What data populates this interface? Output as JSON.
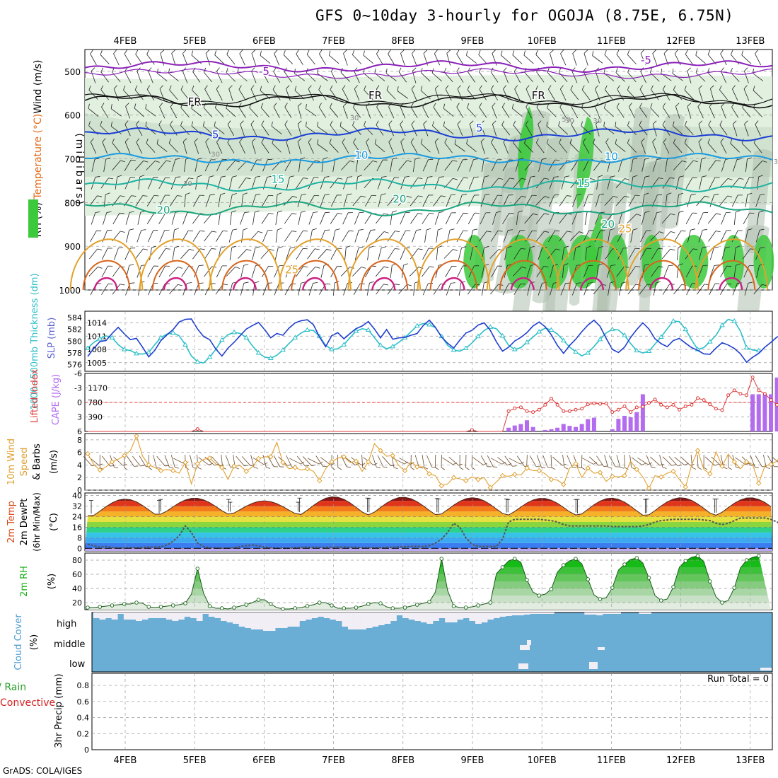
{
  "title": "GFS 0~10day 3-hourly for OGOJA (8.75E, 6.75N)",
  "credit": "GrADS: COLA/IGES",
  "colors": {
    "rh_green": "#3cc93c",
    "rh_light": "#dfeedd",
    "rh_mid": "#aebfae",
    "purple": "#8a20b8",
    "blue": "#1a3ed4",
    "cyan": "#1a9be0",
    "teal": "#1fb3a2",
    "green_iso": "#1ca680",
    "orange": "#e3a12a",
    "dk_orange": "#d9641a",
    "magenta": "#cc1f84",
    "slp": "#1f3fcf",
    "thick": "#2cbfc9",
    "cape": "#b36bf0",
    "li": "#dd3a3a",
    "wind": "#e0a030",
    "rh2m": "#19b019",
    "cloud": "#6aaed6",
    "cloud_clear": "#f2eef6"
  },
  "chart_data": [
    {
      "panel": "upper-air",
      "type": "contour",
      "labels": {
        "y_title": "(millibars)",
        "legend_wind": "Wind (m/s)",
        "legend_temp": "Temperature (°C)",
        "legend_rh": "RH (%)"
      },
      "x_dates": [
        "4FEB",
        "5FEB",
        "6FEB",
        "7FEB",
        "8FEB",
        "9FEB",
        "10FEB",
        "11FEB",
        "12FEB",
        "13FEB"
      ],
      "y_ticks": [
        500,
        600,
        700,
        800,
        900,
        1000
      ],
      "y_range": [
        450,
        1000
      ],
      "isotherm_labels": [
        {
          "text": "-5",
          "day": 2.0,
          "p": 508
        },
        {
          "text": "-5",
          "day": 7.5,
          "p": 482
        },
        {
          "text": "FR",
          "day": 1.0,
          "p": 578
        },
        {
          "text": "FR",
          "day": 3.6,
          "p": 563
        },
        {
          "text": "FR",
          "day": 5.95,
          "p": 563
        },
        {
          "text": "5",
          "day": 1.3,
          "p": 653
        },
        {
          "text": "5",
          "day": 5.1,
          "p": 638
        },
        {
          "text": "10",
          "day": 3.4,
          "p": 700
        },
        {
          "text": "10",
          "day": 7.0,
          "p": 703
        },
        {
          "text": "15",
          "day": 2.2,
          "p": 755
        },
        {
          "text": "15",
          "day": 6.6,
          "p": 765
        },
        {
          "text": "20",
          "day": 0.55,
          "p": 825
        },
        {
          "text": "20",
          "day": 3.95,
          "p": 800
        },
        {
          "text": "20",
          "day": 6.95,
          "p": 858
        },
        {
          "text": "25",
          "day": 7.2,
          "p": 868
        },
        {
          "text": "25",
          "day": 2.4,
          "p": 962
        }
      ],
      "rh_labels": [
        {
          "text": "30",
          "day": 3.3,
          "p": 612
        },
        {
          "text": "30",
          "day": 1.3,
          "p": 695
        },
        {
          "text": "30",
          "day": 0.9,
          "p": 762
        },
        {
          "text": "30",
          "day": 6.4,
          "p": 618
        },
        {
          "text": "30",
          "day": 6.8,
          "p": 618
        },
        {
          "text": "30",
          "day": 9.4,
          "p": 712
        },
        {
          "text": "50",
          "day": 6.35,
          "p": 615
        }
      ]
    },
    {
      "panel": "slp-thickness",
      "type": "line",
      "labels": {
        "left": "1000~500mb Thickness (dm)",
        "right": "SLP (mb)"
      },
      "thickness_ticks": [
        576,
        578,
        580,
        582,
        584
      ],
      "slp_ticks": [
        1005,
        1008,
        1011,
        1014
      ],
      "thickness": [
        578.8,
        579.8,
        580.4,
        580.9,
        580.6,
        579.4,
        578.6,
        578.4,
        577.9,
        577.8,
        578.1,
        579.4,
        580.6,
        581.2,
        581.4,
        580.9,
        579.4,
        577.5,
        576.5,
        576.3,
        577.3,
        578.6,
        580.2,
        581.1,
        581.5,
        581.3,
        580.6,
        579.2,
        578.0,
        577.3,
        577.1,
        577.6,
        578.5,
        579.6,
        580.6,
        581.4,
        581.9,
        581.8,
        580.8,
        579.3,
        578.6,
        578.7,
        579.4,
        580.6,
        581.7,
        582.1,
        581.9,
        580.6,
        579.3,
        578.7,
        579.1,
        579.8,
        580.6,
        581.6,
        582.6,
        583.0,
        582.8,
        582.3,
        580.8,
        579.3,
        578.5,
        578.3,
        578.8,
        579.7,
        580.8,
        581.8,
        582.4,
        582.1,
        580.9,
        579.3,
        578.6,
        578.9,
        579.8,
        580.7,
        581.6,
        582.2,
        581.9,
        581.2,
        580.1,
        579.0,
        578.2,
        577.5,
        578.0,
        579.1,
        580.3,
        581.4,
        582.0,
        581.9,
        581.0,
        579.6,
        578.4,
        578.0,
        578.3,
        579.5,
        580.7,
        582.1,
        583.4,
        583.3,
        582.0,
        580.2,
        578.6,
        578.9,
        579.9,
        581.0,
        582.7,
        583.7,
        583.4,
        581.7,
        578.9,
        578.5,
        578.4
      ],
      "slp": [
        1006.4,
        1008.2,
        1009.8,
        1010.0,
        1011.6,
        1013.0,
        1011.5,
        1010.2,
        1010.5,
        1008.5,
        1006.3,
        1007.8,
        1010.0,
        1011.3,
        1012.5,
        1014.2,
        1014.8,
        1014.9,
        1012.6,
        1010.9,
        1010.2,
        1008.1,
        1006.5,
        1008.3,
        1009.6,
        1011.1,
        1012.6,
        1013.4,
        1014.1,
        1012.5,
        1010.6,
        1011.6,
        1011.2,
        1012.8,
        1014.0,
        1014.5,
        1014.7,
        1013.6,
        1010.8,
        1008.6,
        1011.1,
        1011.8,
        1010.4,
        1011.6,
        1012.7,
        1013.3,
        1014.3,
        1012.6,
        1010.6,
        1012.5,
        1010.3,
        1010.6,
        1010.7,
        1011.2,
        1011.6,
        1013.4,
        1014.6,
        1013.0,
        1010.8,
        1009.4,
        1008.3,
        1010.1,
        1011.7,
        1012.3,
        1013.5,
        1014.0,
        1012.3,
        1009.7,
        1007.6,
        1008.5,
        1009.9,
        1010.7,
        1011.8,
        1013.3,
        1014.2,
        1013.1,
        1011.3,
        1008.9,
        1007.1,
        1008.9,
        1010.3,
        1012.0,
        1013.5,
        1014.6,
        1013.2,
        1010.5,
        1008.0,
        1007.3,
        1008.5,
        1010.7,
        1012.5,
        1014.0,
        1012.6,
        1010.4,
        1009.3,
        1008.6,
        1010.0,
        1010.5,
        1009.4,
        1008.4,
        1007.8,
        1007.0,
        1006.9,
        1008.3,
        1009.5,
        1009.0,
        1008.2,
        1007.0,
        1005.1,
        1006.2,
        1007.1,
        1008.5,
        1009.6,
        1010.8,
        1011.3,
        1010.6,
        1008.5,
        1006.1
      ]
    },
    {
      "panel": "cape-li",
      "type": "bar",
      "labels": {
        "left": "Lifted Index",
        "right": "CAPE (J/kg)"
      },
      "li_ticks": [
        -6,
        -3,
        0,
        3,
        6
      ],
      "cape_ticks": [
        390,
        780,
        1170
      ],
      "cape": [
        0,
        0,
        0,
        0,
        0,
        0,
        0,
        0,
        0,
        0,
        0,
        0,
        0,
        0,
        0,
        0,
        0,
        0,
        0,
        0,
        0,
        0,
        0,
        0,
        0,
        0,
        0,
        0,
        0,
        0,
        0,
        0,
        0,
        0,
        0,
        0,
        0,
        0,
        0,
        0,
        0,
        0,
        0,
        0,
        0,
        0,
        0,
        0,
        0,
        0,
        0,
        0,
        0,
        0,
        0,
        0,
        0,
        0,
        0,
        0,
        0,
        0,
        0,
        0,
        0,
        0,
        0,
        0,
        0,
        100,
        160,
        200,
        300,
        120,
        0,
        40,
        60,
        100,
        200,
        150,
        120,
        200,
        330,
        370,
        0,
        0,
        60,
        340,
        420,
        380,
        520,
        1000,
        0,
        0,
        0,
        0,
        0,
        0,
        0,
        0,
        0,
        0,
        0,
        0,
        0,
        0,
        0,
        0,
        0,
        1000,
        1000,
        1000,
        1000,
        1450,
        220,
        0,
        0,
        0,
        0,
        1000,
        850,
        850
      ],
      "li": [
        6,
        6,
        6,
        6,
        6,
        6,
        6,
        6,
        6,
        6,
        6,
        6,
        6,
        6,
        6,
        6,
        6,
        6,
        5.5,
        6,
        6,
        6,
        6,
        6,
        6,
        6,
        6,
        6,
        6,
        6,
        6,
        6,
        6,
        6,
        6,
        6,
        6,
        6,
        6,
        6,
        6,
        6,
        6,
        6,
        6,
        6,
        6,
        6,
        6,
        6,
        6,
        6,
        6,
        6,
        6,
        6,
        6,
        6,
        6,
        6,
        6,
        6,
        6,
        5.7,
        6,
        6,
        6,
        6,
        6,
        1.8,
        1.2,
        1.0,
        1.8,
        2.0,
        1.5,
        0.5,
        -0.8,
        0.5,
        1.8,
        1.8,
        1.5,
        1.3,
        0.4,
        0.2,
        0.3,
        0.2,
        2.0,
        1.5,
        0.8,
        2.0,
        1.0,
        0.9,
        0.1,
        -0.6,
        0.5,
        1.0,
        0.5,
        1.5,
        0.8,
        0.5,
        -0.9,
        -0.5,
        0.4,
        1.3,
        1.6,
        -1.5,
        -2.5,
        -1.8,
        -1.5,
        -5.2,
        -2.5,
        -1.8,
        -0.5,
        0.5,
        1.5,
        2.5,
        -1.8,
        -1.3,
        -1.8,
        -2.6
      ]
    },
    {
      "panel": "wind-10m",
      "type": "line",
      "labels": {
        "left": "10m Wind Speed & Barbs",
        "unit": "(m/s)"
      },
      "y_ticks": [
        0,
        2,
        4,
        6,
        8
      ],
      "speed": [
        5.8,
        4.1,
        3.2,
        3.7,
        4.5,
        4.9,
        5.5,
        6.3,
        8.6,
        5.4,
        4.0,
        3.6,
        3.1,
        3.3,
        3.1,
        2.7,
        4.4,
        1.0,
        4.2,
        4.9,
        5.1,
        4.2,
        3.6,
        1.7,
        3.8,
        3.9,
        3.0,
        3.7,
        5.0,
        5.3,
        5.3,
        7.6,
        4.4,
        3.4,
        3.6,
        3.2,
        3.4,
        3.0,
        1.5,
        3.4,
        4.5,
        5.1,
        5.3,
        4.4,
        4.6,
        3.0,
        4.5,
        7.4,
        6.3,
        5.4,
        5.5,
        3.9,
        3.1,
        4.5,
        3.7,
        3.7,
        2.6,
        2.3,
        0.7,
        1.0,
        2.0,
        1.8,
        1.5,
        2.1,
        1.7,
        2.0,
        0.4,
        1.3,
        2.3,
        2.2,
        2.5,
        2.4,
        3.5,
        3.1,
        3.1,
        2.6,
        1.7,
        1.6,
        0.9,
        3.5,
        4.2,
        2.0,
        3.5,
        2.7,
        2.8,
        1.4,
        2.2,
        2.1,
        2.3,
        4.6,
        3.3,
        2.1,
        0.3,
        2.3,
        2.1,
        2.7,
        3.0,
        1.7,
        0.5,
        4.0,
        6.3,
        3.3,
        2.6,
        6.1,
        3.8,
        5.7,
        4.5,
        3.4,
        4.5,
        4.1,
        1.1,
        3.8,
        4.1,
        4.6,
        6.3,
        4.6,
        2.2,
        4.2
      ]
    },
    {
      "panel": "temp-2m",
      "type": "area",
      "labels": {
        "left1": "2m Temp",
        "left2": "2m DewPt",
        "left3": "(6hr Min/Max)",
        "unit": "(°C)"
      },
      "y_ticks": [
        0,
        8,
        16,
        24,
        32,
        40
      ],
      "tmax": [
        37.4,
        38.1,
        36.0,
        39.1,
        38.8,
        38.4,
        38.0,
        38.1,
        38.4,
        38.4
      ],
      "tmin": [
        24.4,
        26.0,
        25.8,
        25.5,
        25.4,
        25.2,
        25.3,
        24.5,
        25.0,
        25.1
      ],
      "dewpt": [
        3.2,
        2.0,
        1.0,
        1.5,
        0.5,
        0.3,
        0.3,
        0.5,
        0.6,
        0.8,
        1.0,
        1.0,
        1.2,
        2.4,
        5.4,
        9.6,
        17.0,
        12.0,
        4.0,
        1.3,
        0.5,
        0.3,
        0.2,
        0.2,
        0.5,
        1.5,
        2.0,
        2.5,
        1.8,
        1.0,
        0.4,
        0.2,
        0.2,
        0.2,
        0.5,
        0.8,
        1.0,
        0.8,
        0.8,
        0.8,
        0.8,
        1.0,
        1.0,
        0.8,
        0.8,
        0.5,
        0.5,
        0.5,
        0.5,
        0.8,
        0.8,
        1.2,
        1.2,
        1.5,
        1.6,
        1.4,
        2.0,
        4.0,
        7.0,
        12.0,
        19.0,
        16.0,
        8.0,
        3.0,
        1.5,
        1.5,
        1.5,
        1.5,
        7.0,
        20.0,
        22.0,
        22.0,
        22.0,
        22.0,
        22.0,
        21.5,
        21.0,
        20.0,
        18.0,
        17.0,
        17.0,
        17.0,
        17.0,
        17.0,
        17.0,
        17.0,
        16.5,
        16.5,
        16.5,
        16.5,
        16.5,
        17.0,
        18.0,
        20.0,
        21.0,
        21.5,
        22.0,
        22.0,
        22.0,
        22.0,
        22.0,
        21.5,
        21.0,
        19.0,
        18.0,
        19.0,
        21.0,
        23.0,
        23.0,
        23.0,
        23.0,
        23.0,
        22.0,
        20.0,
        17.0,
        16.5,
        16.5,
        16.5,
        16.5,
        17.0,
        17.0,
        22.0,
        22.5,
        23.0
      ]
    },
    {
      "panel": "rh-2m",
      "type": "area",
      "labels": {
        "left": "2m RH",
        "unit": "(%)"
      },
      "y_ticks": [
        20,
        40,
        60,
        80
      ],
      "rh": [
        13,
        13,
        14,
        15,
        16,
        17,
        18,
        18,
        20,
        19,
        14,
        13,
        14,
        15,
        16,
        17,
        19,
        32,
        68,
        33,
        15,
        12,
        12,
        11,
        13,
        15,
        17,
        20,
        24,
        24,
        18,
        13,
        11,
        11,
        12,
        13,
        15,
        17,
        20,
        20,
        16,
        12,
        12,
        12,
        13,
        15,
        18,
        20,
        19,
        14,
        12,
        12,
        13,
        15,
        17,
        19,
        21,
        35,
        82,
        37,
        15,
        13,
        13,
        14,
        16,
        18,
        20,
        61,
        70,
        79,
        82,
        77,
        52,
        35,
        30,
        32,
        39,
        63,
        73,
        79,
        82,
        75,
        53,
        31,
        25,
        27,
        41,
        66,
        74,
        81,
        83,
        76,
        55,
        30,
        23,
        25,
        42,
        70,
        79,
        84,
        86,
        78,
        50,
        28,
        20,
        23,
        41,
        69,
        80,
        84,
        86
      ]
    },
    {
      "panel": "cloud-cover",
      "type": "heatmap",
      "labels": {
        "left": "Cloud Cover",
        "unit": "(%)",
        "high": "high",
        "middle": "middle",
        "low": "low"
      },
      "high": [
        8,
        10,
        8,
        10,
        2,
        10,
        10,
        12,
        10,
        8,
        8,
        8,
        10,
        12,
        10,
        6,
        8,
        12,
        2,
        6,
        8,
        12,
        14,
        16,
        20,
        22,
        24,
        24,
        26,
        26,
        22,
        22,
        20,
        20,
        12,
        10,
        8,
        6,
        8,
        10,
        12,
        20,
        24,
        24,
        24,
        22,
        20,
        18,
        16,
        12,
        4,
        8,
        10,
        12,
        14,
        16,
        12,
        8,
        14,
        14,
        10,
        8,
        12,
        16,
        14,
        10,
        8,
        6,
        5,
        4,
        4,
        3,
        2,
        2,
        2,
        2,
        0,
        0,
        0,
        0,
        0,
        3,
        3,
        4,
        2,
        2,
        2,
        0,
        0,
        0,
        2,
        2,
        0,
        0,
        0,
        0,
        0,
        0,
        0,
        0,
        0,
        0,
        0,
        0,
        0,
        0,
        0,
        0,
        0,
        0,
        0,
        0
      ],
      "middle_specks": [
        4,
        3,
        2,
        4,
        3,
        2,
        0,
        0,
        0,
        0
      ],
      "low_specks": [
        5,
        0,
        0,
        0,
        3,
        3,
        0,
        0,
        0,
        0
      ]
    },
    {
      "panel": "precip",
      "type": "bar",
      "labels": {
        "left1": "Total / Rain",
        "left2": "Convective",
        "unit": "3hr Precip (mm)",
        "run_total": "Run Total = 0"
      },
      "y_ticks": [
        0,
        0.2,
        0.4,
        0.6,
        0.8
      ],
      "x_dates": [
        "4FEB",
        "5FEB",
        "6FEB",
        "7FEB",
        "8FEB",
        "9FEB",
        "10FEB",
        "11FEB",
        "12FEB",
        "13FEB"
      ],
      "precip": []
    }
  ]
}
